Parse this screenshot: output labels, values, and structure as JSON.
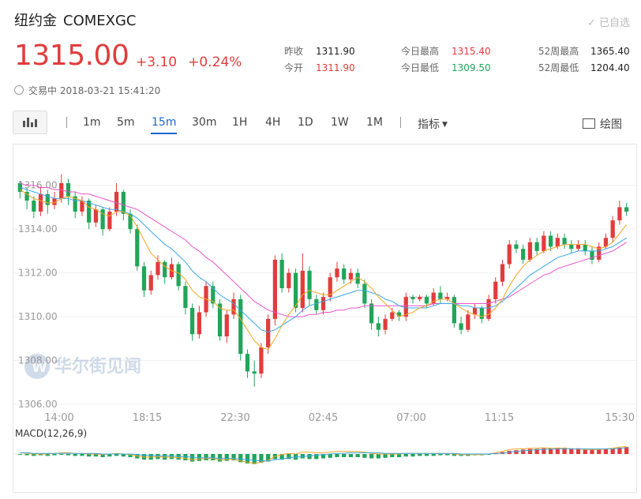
{
  "header": {
    "title_cn": "纽约金",
    "title_en": "COMEXGC",
    "watch_label": "✓ 已自选",
    "price": "1315.00",
    "change": "+3.10",
    "change_pct": "+0.24%",
    "status": "交易中 2018-03-21 15:41:20"
  },
  "stats": [
    {
      "label": "昨收",
      "value": "1311.90"
    },
    {
      "label": "今开",
      "value": "1311.90"
    },
    {
      "label": "今日最高",
      "value": "1315.40"
    },
    {
      "label": "今日最低",
      "value": "1309.50"
    },
    {
      "label": "52周最高",
      "value": "1365.40"
    },
    {
      "label": "52周最低",
      "value": "1204.40"
    }
  ],
  "toolbar": {
    "chart_type_icon": "candlestick-icon",
    "timeframes": [
      "1m",
      "5m",
      "15m",
      "30m",
      "1H",
      "4H",
      "1D",
      "1W",
      "1M"
    ],
    "active_timeframe": "15m",
    "indicator_label": "指标",
    "draw_label": "绘图"
  },
  "colors": {
    "up": "#e13c3c",
    "down": "#21a559",
    "accent": "#1a66d0",
    "ma_short": "#f5a623",
    "ma_mid": "#3aa7e8",
    "ma_long": "#ea54c9"
  },
  "watermark": "华尔街见闻",
  "chart_data": {
    "type": "candlestick",
    "ylim": [
      1306,
      1317
    ],
    "y_ticks": [
      1306,
      1308,
      1310,
      1312,
      1314,
      1316
    ],
    "y_tick_labels": [
      "1306.00",
      "1308.00",
      "1310.00",
      "1312.00",
      "1314.00",
      "1316.00"
    ],
    "x_tick_labels": [
      "14:00",
      "18:15",
      "22:30",
      "02:45",
      "07:00",
      "11:15",
      "15:30"
    ],
    "reference_line": 1310.9,
    "candles": [
      [
        1316.1,
        1315.7,
        1316.2,
        1315.4
      ],
      [
        1315.7,
        1315.3,
        1315.9,
        1314.9
      ],
      [
        1315.3,
        1314.8,
        1315.5,
        1314.5
      ],
      [
        1314.8,
        1315.6,
        1315.9,
        1314.6
      ],
      [
        1315.6,
        1315.1,
        1315.8,
        1314.7
      ],
      [
        1315.1,
        1315.4,
        1315.7,
        1314.9
      ],
      [
        1315.4,
        1316.1,
        1316.5,
        1315.2
      ],
      [
        1316.1,
        1315.5,
        1316.3,
        1315.1
      ],
      [
        1315.5,
        1314.8,
        1315.7,
        1314.5
      ],
      [
        1314.8,
        1315.3,
        1315.5,
        1314.6
      ],
      [
        1315.3,
        1314.3,
        1315.4,
        1314.0
      ],
      [
        1314.3,
        1314.9,
        1315.1,
        1314.1
      ],
      [
        1314.9,
        1314.0,
        1315.0,
        1313.7
      ],
      [
        1314.0,
        1314.8,
        1315.0,
        1313.9
      ],
      [
        1314.8,
        1315.7,
        1316.1,
        1314.6
      ],
      [
        1315.7,
        1314.7,
        1315.8,
        1314.4
      ],
      [
        1314.7,
        1314.0,
        1314.9,
        1313.8
      ],
      [
        1314.0,
        1312.3,
        1314.2,
        1312.1
      ],
      [
        1312.3,
        1311.2,
        1312.5,
        1310.9
      ],
      [
        1311.2,
        1311.9,
        1312.1,
        1311.0
      ],
      [
        1311.9,
        1312.5,
        1312.8,
        1311.7
      ],
      [
        1312.5,
        1311.8,
        1312.6,
        1311.5
      ],
      [
        1311.8,
        1312.4,
        1312.7,
        1311.7
      ],
      [
        1312.4,
        1311.4,
        1312.5,
        1311.2
      ],
      [
        1311.4,
        1310.4,
        1311.6,
        1310.1
      ],
      [
        1310.4,
        1309.2,
        1310.6,
        1308.9
      ],
      [
        1309.2,
        1310.2,
        1310.5,
        1309.0
      ],
      [
        1310.2,
        1311.4,
        1311.6,
        1310.0
      ],
      [
        1311.4,
        1310.6,
        1311.6,
        1310.4
      ],
      [
        1310.6,
        1309.1,
        1310.8,
        1308.9
      ],
      [
        1309.1,
        1310.1,
        1310.3,
        1308.8
      ],
      [
        1310.1,
        1310.8,
        1311.1,
        1309.9
      ],
      [
        1310.8,
        1308.3,
        1311.0,
        1308.0
      ],
      [
        1308.3,
        1307.5,
        1308.5,
        1307.2
      ],
      [
        1307.5,
        1307.4,
        1308.0,
        1306.8
      ],
      [
        1307.4,
        1308.6,
        1308.8,
        1307.2
      ],
      [
        1308.6,
        1309.9,
        1310.1,
        1308.3
      ],
      [
        1309.9,
        1312.6,
        1312.8,
        1309.6
      ],
      [
        1312.6,
        1311.3,
        1312.9,
        1311.1
      ],
      [
        1311.3,
        1312.0,
        1312.2,
        1311.1
      ],
      [
        1312.0,
        1310.4,
        1312.2,
        1310.2
      ],
      [
        1310.4,
        1312.1,
        1312.9,
        1310.2
      ],
      [
        1312.1,
        1310.8,
        1312.3,
        1310.5
      ],
      [
        1310.8,
        1310.3,
        1311.0,
        1310.1
      ],
      [
        1310.3,
        1310.9,
        1311.1,
        1310.1
      ],
      [
        1310.9,
        1311.8,
        1312.0,
        1310.7
      ],
      [
        1311.8,
        1312.2,
        1312.5,
        1311.6
      ],
      [
        1312.2,
        1311.7,
        1312.4,
        1311.5
      ],
      [
        1311.7,
        1312.0,
        1312.2,
        1311.5
      ],
      [
        1312.0,
        1311.5,
        1312.2,
        1311.3
      ],
      [
        1311.5,
        1310.6,
        1311.7,
        1310.4
      ],
      [
        1310.6,
        1309.7,
        1310.8,
        1309.4
      ],
      [
        1309.7,
        1309.4,
        1310.0,
        1309.1
      ],
      [
        1309.4,
        1309.9,
        1310.1,
        1309.2
      ],
      [
        1309.9,
        1310.2,
        1310.4,
        1309.8
      ],
      [
        1310.2,
        1310.0,
        1310.3,
        1309.8
      ],
      [
        1310.0,
        1310.9,
        1311.1,
        1309.8
      ],
      [
        1310.9,
        1310.8,
        1311.0,
        1310.6
      ],
      [
        1310.8,
        1310.9,
        1311.0,
        1310.7
      ],
      [
        1310.9,
        1310.6,
        1311.0,
        1310.4
      ],
      [
        1310.6,
        1311.1,
        1311.3,
        1310.5
      ],
      [
        1311.1,
        1310.8,
        1311.4,
        1310.6
      ],
      [
        1310.8,
        1310.9,
        1311.1,
        1310.7
      ],
      [
        1310.9,
        1309.7,
        1311.0,
        1309.5
      ],
      [
        1309.7,
        1309.4,
        1310.0,
        1309.2
      ],
      [
        1309.4,
        1310.1,
        1310.3,
        1309.3
      ],
      [
        1310.1,
        1310.4,
        1310.6,
        1309.9
      ],
      [
        1310.4,
        1309.9,
        1310.5,
        1309.7
      ],
      [
        1309.9,
        1310.8,
        1311.0,
        1309.8
      ],
      [
        1310.8,
        1311.6,
        1311.8,
        1310.6
      ],
      [
        1311.6,
        1312.4,
        1312.6,
        1311.4
      ],
      [
        1312.4,
        1313.3,
        1313.5,
        1312.2
      ],
      [
        1313.3,
        1313.1,
        1313.5,
        1312.9
      ],
      [
        1313.1,
        1312.6,
        1313.3,
        1312.4
      ],
      [
        1312.6,
        1313.4,
        1313.6,
        1312.5
      ],
      [
        1313.4,
        1313.0,
        1313.6,
        1312.8
      ],
      [
        1313.0,
        1313.7,
        1313.9,
        1312.9
      ],
      [
        1313.7,
        1313.2,
        1313.9,
        1313.0
      ],
      [
        1313.2,
        1313.6,
        1313.8,
        1313.1
      ],
      [
        1313.6,
        1313.3,
        1313.8,
        1313.1
      ],
      [
        1313.3,
        1313.1,
        1313.5,
        1312.9
      ],
      [
        1313.1,
        1313.3,
        1313.5,
        1313.0
      ],
      [
        1313.3,
        1313.0,
        1313.5,
        1312.8
      ],
      [
        1313.0,
        1312.6,
        1313.2,
        1312.4
      ],
      [
        1312.6,
        1313.2,
        1313.4,
        1312.5
      ],
      [
        1313.2,
        1313.6,
        1313.8,
        1313.1
      ],
      [
        1313.6,
        1314.4,
        1314.6,
        1313.4
      ],
      [
        1314.4,
        1315.0,
        1315.3,
        1314.2
      ],
      [
        1315.0,
        1314.8,
        1315.2,
        1314.6
      ]
    ],
    "ma_short": [
      1315.8,
      1315.6,
      1315.4,
      1315.3,
      1315.2,
      1315.2,
      1315.4,
      1315.5,
      1315.4,
      1315.3,
      1315.0,
      1314.9,
      1314.7,
      1314.6,
      1314.8,
      1314.8,
      1314.6,
      1314.1,
      1313.5,
      1312.9,
      1312.6,
      1312.3,
      1312.1,
      1312.0,
      1311.7,
      1311.2,
      1310.9,
      1310.8,
      1310.7,
      1310.4,
      1310.3,
      1310.3,
      1309.9,
      1309.4,
      1308.9,
      1308.6,
      1308.5,
      1309.0,
      1309.6,
      1310.1,
      1310.5,
      1311.0,
      1311.2,
      1311.1,
      1311.0,
      1311.0,
      1311.2,
      1311.4,
      1311.6,
      1311.8,
      1311.6,
      1311.3,
      1310.9,
      1310.6,
      1310.3,
      1310.0,
      1310.1,
      1310.2,
      1310.4,
      1310.5,
      1310.7,
      1310.8,
      1310.8,
      1310.6,
      1310.4,
      1310.2,
      1310.1,
      1310.0,
      1310.1,
      1310.4,
      1310.8,
      1311.4,
      1311.9,
      1312.3,
      1312.6,
      1312.8,
      1313.0,
      1313.1,
      1313.2,
      1313.3,
      1313.3,
      1313.3,
      1313.3,
      1313.2,
      1313.1,
      1313.2,
      1313.4,
      1313.8,
      1314.2
    ],
    "ma_mid": [
      1315.9,
      1315.8,
      1315.7,
      1315.6,
      1315.5,
      1315.4,
      1315.4,
      1315.4,
      1315.3,
      1315.3,
      1315.2,
      1315.1,
      1315.0,
      1314.9,
      1314.9,
      1314.8,
      1314.7,
      1314.5,
      1314.2,
      1313.9,
      1313.6,
      1313.3,
      1313.1,
      1312.8,
      1312.5,
      1312.1,
      1311.8,
      1311.6,
      1311.3,
      1311.0,
      1310.8,
      1310.6,
      1310.3,
      1310.0,
      1309.7,
      1309.4,
      1309.3,
      1309.4,
      1309.6,
      1309.8,
      1310.0,
      1310.3,
      1310.5,
      1310.6,
      1310.7,
      1310.8,
      1310.9,
      1311.0,
      1311.1,
      1311.2,
      1311.2,
      1311.1,
      1311.0,
      1310.8,
      1310.7,
      1310.5,
      1310.4,
      1310.4,
      1310.4,
      1310.4,
      1310.5,
      1310.6,
      1310.6,
      1310.6,
      1310.5,
      1310.5,
      1310.4,
      1310.4,
      1310.4,
      1310.5,
      1310.7,
      1311.0,
      1311.3,
      1311.6,
      1311.9,
      1312.1,
      1312.3,
      1312.5,
      1312.7,
      1312.8,
      1312.9,
      1313.0,
      1313.0,
      1313.0,
      1313.0,
      1313.1,
      1313.2,
      1313.4,
      1313.6
    ],
    "ma_long": [
      1316.1,
      1316.0,
      1316.0,
      1315.9,
      1315.9,
      1315.8,
      1315.8,
      1315.7,
      1315.7,
      1315.6,
      1315.6,
      1315.5,
      1315.4,
      1315.3,
      1315.2,
      1315.1,
      1315.0,
      1314.9,
      1314.7,
      1314.5,
      1314.3,
      1314.1,
      1313.9,
      1313.7,
      1313.5,
      1313.2,
      1313.0,
      1312.7,
      1312.5,
      1312.2,
      1311.9,
      1311.6,
      1311.3,
      1311.0,
      1310.7,
      1310.5,
      1310.3,
      1310.2,
      1310.1,
      1310.0,
      1310.0,
      1310.0,
      1310.1,
      1310.1,
      1310.2,
      1310.2,
      1310.3,
      1310.3,
      1310.4,
      1310.4,
      1310.5,
      1310.5,
      1310.5,
      1310.5,
      1310.5,
      1310.5,
      1310.5,
      1310.5,
      1310.5,
      1310.5,
      1310.6,
      1310.6,
      1310.6,
      1310.6,
      1310.6,
      1310.6,
      1310.6,
      1310.6,
      1310.6,
      1310.7,
      1310.8,
      1310.9,
      1311.1,
      1311.3,
      1311.5,
      1311.7,
      1311.9,
      1312.0,
      1312.2,
      1312.3,
      1312.4,
      1312.5,
      1312.6,
      1312.7,
      1312.8,
      1312.9,
      1313.0,
      1313.2,
      1313.4
    ],
    "macd": {
      "label": "MACD(12,26,9)",
      "ylim": [
        -2.0,
        1.6
      ],
      "histogram": [
        -0.1,
        -0.2,
        -0.3,
        -0.2,
        -0.3,
        -0.2,
        -0.1,
        -0.2,
        -0.3,
        -0.3,
        -0.4,
        -0.4,
        -0.5,
        -0.4,
        -0.3,
        -0.4,
        -0.5,
        -0.7,
        -0.9,
        -0.9,
        -0.8,
        -0.9,
        -0.8,
        -0.9,
        -1.0,
        -1.2,
        -1.1,
        -1.0,
        -1.0,
        -1.2,
        -1.1,
        -1.0,
        -1.3,
        -1.5,
        -1.6,
        -1.4,
        -1.2,
        -0.8,
        -0.9,
        -0.8,
        -0.9,
        -0.7,
        -0.8,
        -0.8,
        -0.7,
        -0.6,
        -0.5,
        -0.5,
        -0.5,
        -0.5,
        -0.6,
        -0.7,
        -0.7,
        -0.6,
        -0.5,
        -0.5,
        -0.4,
        -0.4,
        -0.3,
        -0.3,
        -0.3,
        -0.2,
        -0.2,
        -0.3,
        -0.3,
        -0.3,
        -0.2,
        -0.2,
        -0.1,
        0.1,
        0.3,
        0.5,
        0.6,
        0.7,
        0.8,
        0.8,
        0.9,
        0.9,
        1.0,
        1.0,
        0.9,
        0.9,
        0.8,
        0.8,
        0.8,
        0.8,
        0.9,
        1.0,
        1.1
      ],
      "dif": [
        0.2,
        0.1,
        0.0,
        0.0,
        0.0,
        0.1,
        0.2,
        0.2,
        0.1,
        0.1,
        0.0,
        0.0,
        -0.1,
        0.0,
        0.1,
        0.0,
        -0.1,
        -0.3,
        -0.5,
        -0.5,
        -0.4,
        -0.5,
        -0.5,
        -0.6,
        -0.7,
        -0.9,
        -0.8,
        -0.7,
        -0.7,
        -0.9,
        -0.9,
        -0.8,
        -1.1,
        -1.3,
        -1.5,
        -1.3,
        -1.0,
        -0.4,
        -0.1,
        0.1,
        0.0,
        0.3,
        0.3,
        0.2,
        0.2,
        0.3,
        0.4,
        0.4,
        0.4,
        0.4,
        0.3,
        0.1,
        0.0,
        0.0,
        0.0,
        0.0,
        0.1,
        0.1,
        0.1,
        0.1,
        0.1,
        0.1,
        0.1,
        0.0,
        -0.1,
        -0.1,
        -0.1,
        -0.1,
        0.0,
        0.2,
        0.4,
        0.7,
        0.8,
        0.8,
        0.9,
        0.9,
        1.0,
        0.9,
        0.9,
        0.9,
        0.8,
        0.8,
        0.7,
        0.7,
        0.7,
        0.8,
        0.9,
        1.1,
        1.2
      ],
      "dea": [
        0.2,
        0.2,
        0.1,
        0.1,
        0.1,
        0.1,
        0.1,
        0.1,
        0.1,
        0.1,
        0.1,
        0.1,
        0.0,
        0.0,
        0.0,
        0.0,
        0.0,
        -0.1,
        -0.2,
        -0.2,
        -0.3,
        -0.3,
        -0.3,
        -0.4,
        -0.4,
        -0.5,
        -0.6,
        -0.6,
        -0.6,
        -0.7,
        -0.7,
        -0.7,
        -0.8,
        -0.9,
        -1.0,
        -1.1,
        -1.1,
        -0.9,
        -0.8,
        -0.6,
        -0.5,
        -0.4,
        -0.3,
        -0.2,
        -0.1,
        0.0,
        0.1,
        0.1,
        0.2,
        0.2,
        0.2,
        0.2,
        0.2,
        0.1,
        0.1,
        0.1,
        0.1,
        0.1,
        0.1,
        0.1,
        0.1,
        0.1,
        0.1,
        0.1,
        0.0,
        0.0,
        0.0,
        0.0,
        0.0,
        0.1,
        0.1,
        0.3,
        0.4,
        0.5,
        0.6,
        0.7,
        0.7,
        0.8,
        0.8,
        0.8,
        0.8,
        0.8,
        0.8,
        0.8,
        0.8,
        0.8,
        0.8,
        0.9,
        1.0
      ]
    }
  }
}
